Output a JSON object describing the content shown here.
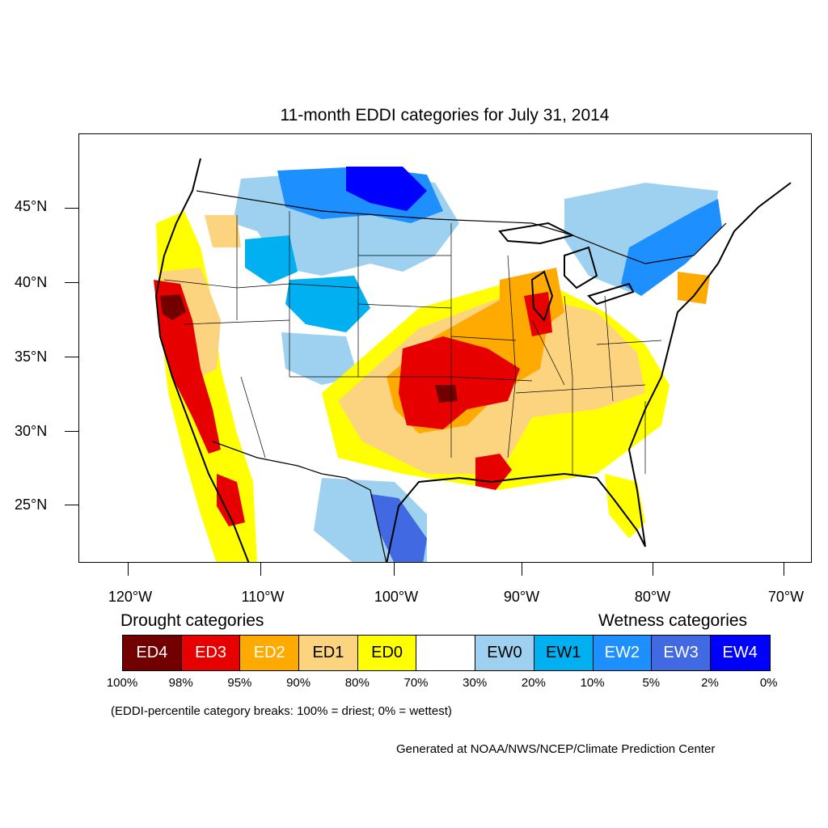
{
  "title": "11-month EDDI categories for July 31, 2014",
  "latitude_labels": [
    "45°N",
    "40°N",
    "35°N",
    "30°N",
    "25°N"
  ],
  "longitude_labels": [
    "120°W",
    "110°W",
    "100°W",
    "90°W",
    "80°W",
    "70°W"
  ],
  "legend": {
    "drought_heading": "Drought categories",
    "wetness_heading": "Wetness categories",
    "categories": [
      {
        "label": "ED4",
        "color": "#730000",
        "text_color": "#ffffff"
      },
      {
        "label": "ED3",
        "color": "#e60000",
        "text_color": "#ffffff"
      },
      {
        "label": "ED2",
        "color": "#ffaa00",
        "text_color": "#ffffff"
      },
      {
        "label": "ED1",
        "color": "#fcd37f",
        "text_color": "#000000"
      },
      {
        "label": "ED0",
        "color": "#ffff00",
        "text_color": "#000000"
      },
      {
        "label": "",
        "color": "#ffffff",
        "text_color": "#000000"
      },
      {
        "label": "EW0",
        "color": "#9dd1ef",
        "text_color": "#000000"
      },
      {
        "label": "EW1",
        "color": "#00b0f0",
        "text_color": "#000000"
      },
      {
        "label": "EW2",
        "color": "#1e8fff",
        "text_color": "#ffffff"
      },
      {
        "label": "EW3",
        "color": "#4169e1",
        "text_color": "#ffffff"
      },
      {
        "label": "EW4",
        "color": "#0000ff",
        "text_color": "#ffffff"
      }
    ],
    "breaks": [
      "100%",
      "98%",
      "95%",
      "90%",
      "80%",
      "70%",
      "30%",
      "20%",
      "10%",
      "5%",
      "2%",
      "0%"
    ]
  },
  "note": "(EDDI-percentile category breaks: 100% = driest; 0% = wettest)",
  "credit": "Generated at NOAA/NWS/NCEP/Climate Prediction Center"
}
